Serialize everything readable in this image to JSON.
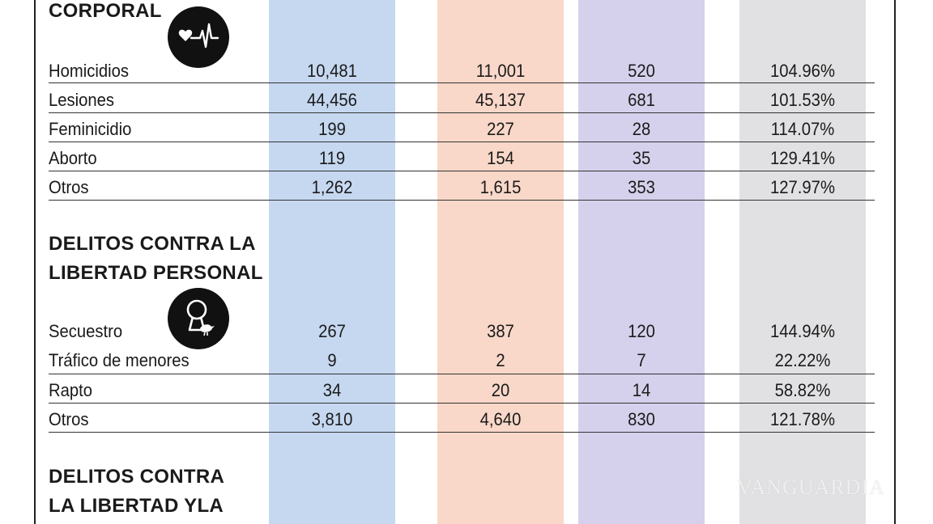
{
  "colors": {
    "col1": "#c5d8f0",
    "col2": "#f9d8c9",
    "col3": "#d5d1ec",
    "col4": "#e1e1e3",
    "rule": "#333333",
    "icon_bg": "#111111"
  },
  "sections": {
    "corporal": {
      "title_line1": "CORPORAL",
      "icon": "heartbeat-icon",
      "rows": [
        {
          "label": "Homicidios",
          "v1": "10,481",
          "v2": "11,001",
          "v3": "520",
          "v4": "104.96%"
        },
        {
          "label": "Lesiones",
          "v1": "44,456",
          "v2": "45,137",
          "v3": "681",
          "v4": "101.53%"
        },
        {
          "label": "Feminicidio",
          "v1": "199",
          "v2": "227",
          "v3": "28",
          "v4": "114.07%"
        },
        {
          "label": "Aborto",
          "v1": "119",
          "v2": "154",
          "v3": "35",
          "v4": "129.41%"
        },
        {
          "label": "Otros",
          "v1": "1,262",
          "v2": "1,615",
          "v3": "353",
          "v4": "127.97%"
        }
      ]
    },
    "libertad_personal": {
      "title_line1": "DELITOS CONTRA LA",
      "title_line2": "LIBERTAD PERSONAL",
      "icon": "keyhole-bird-icon",
      "rows": [
        {
          "label": "Secuestro",
          "v1": "267",
          "v2": "387",
          "v3": "120",
          "v4": "144.94%"
        },
        {
          "label": "Tráfico de menores",
          "v1": "9",
          "v2": "2",
          "v3": "7",
          "v4": "22.22%"
        },
        {
          "label": "Rapto",
          "v1": "34",
          "v2": "20",
          "v3": "14",
          "v4": "58.82%"
        },
        {
          "label": "Otros",
          "v1": "3,810",
          "v2": "4,640",
          "v3": "830",
          "v4": "121.78%"
        }
      ]
    },
    "libertad_y_la": {
      "title_line1": "DELITOS CONTRA",
      "title_line2": "LA LIBERTAD YLA"
    }
  },
  "watermark": "VANGUARDIA"
}
